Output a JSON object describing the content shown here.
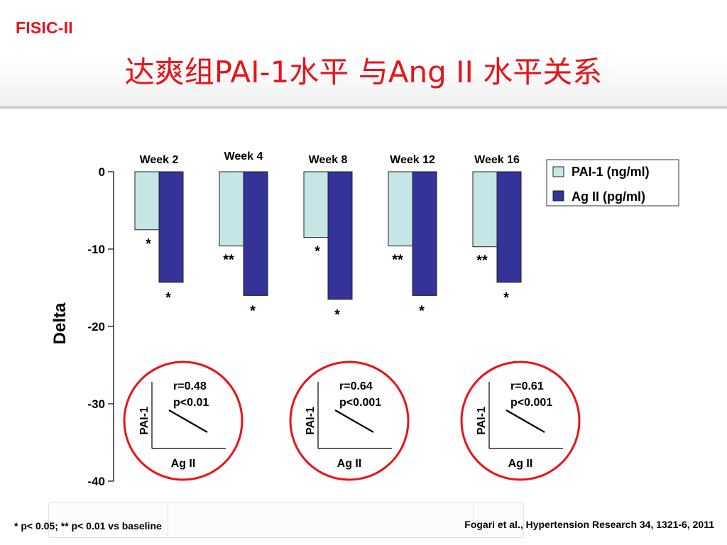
{
  "header": {
    "brand": "FISIC-II",
    "title": "达爽组PAI-1水平 与Ang II 水平关系"
  },
  "colors": {
    "accent": "#e8141b",
    "pai1": "#c6e5e7",
    "ag2": "#333399"
  },
  "chart_data": {
    "type": "bar",
    "categories": [
      "Week 2",
      "Week 4",
      "Week 8",
      "Week 12",
      "Week 16"
    ],
    "series": [
      {
        "name": "PAI-1 (ng/ml)",
        "values": [
          -7.5,
          -9.6,
          -8.5,
          -9.6,
          -9.7
        ]
      },
      {
        "name": "Ag II  (pg/ml)",
        "values": [
          -14.3,
          -16.0,
          -16.5,
          -16.0,
          -14.3
        ]
      }
    ],
    "significance": {
      "pai1": [
        "*",
        "**",
        "*",
        "**",
        "**"
      ],
      "ag2": [
        "*",
        "*",
        "*",
        "*",
        "*"
      ]
    },
    "ylabel": "Delta",
    "ylim": [
      -40,
      0
    ],
    "yticks": [
      0,
      -10,
      -20,
      -30,
      -40
    ],
    "legend_position": "top-right",
    "grid": false
  },
  "insets": [
    {
      "r": "r=0.48",
      "p": "p<0.01",
      "ylabel": "PAI-1",
      "xlabel": "Ag II"
    },
    {
      "r": "r=0.64",
      "p": "p<0.001",
      "ylabel": "PAI-1",
      "xlabel": "Ag II"
    },
    {
      "r": "r=0.61",
      "p": "p<0.001",
      "ylabel": "PAI-1",
      "xlabel": "Ag II"
    }
  ],
  "footer": {
    "footnote": "* p< 0.05; ** p< 0.01 vs baseline",
    "citation": "Fogari et al., Hypertension Research 34, 1321-6, 2011"
  }
}
